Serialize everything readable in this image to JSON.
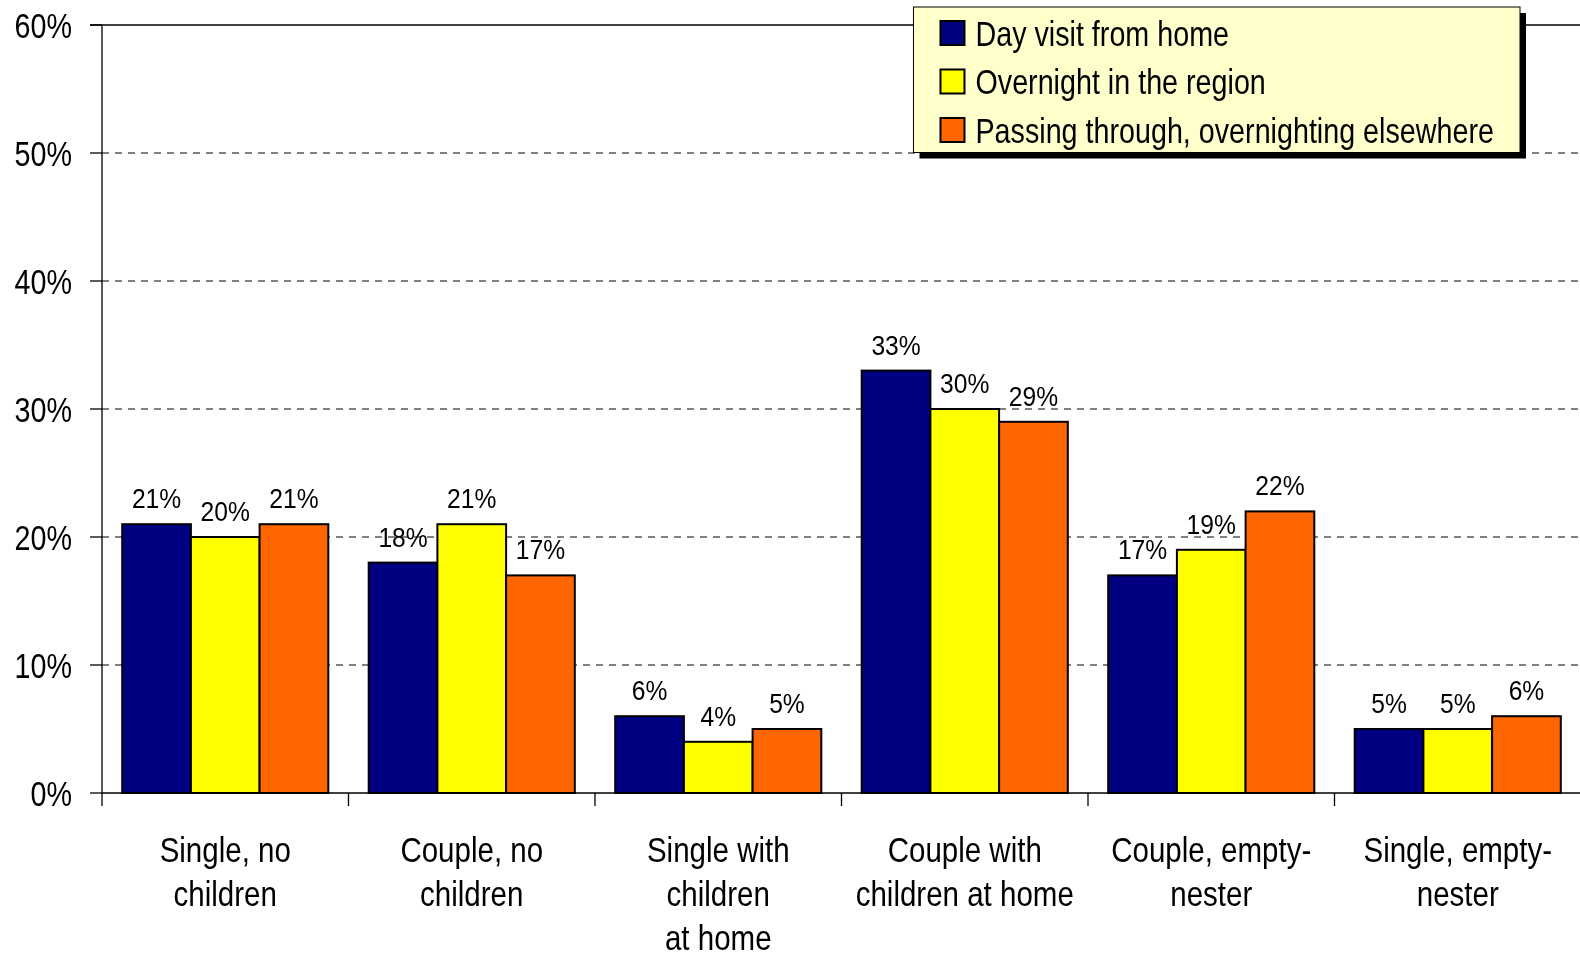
{
  "chart_data": {
    "type": "bar",
    "categories": [
      "Single, no\nchildren",
      "Couple, no\nchildren",
      "Single with\nchildren\nat home",
      "Couple with\nchildren at home",
      "Couple, empty-\nnester",
      "Single, empty-\nnester"
    ],
    "series": [
      {
        "name": "Day visit from home",
        "color": "#000080",
        "values": [
          21,
          18,
          6,
          33,
          17,
          5
        ],
        "value_labels": [
          "21%",
          "18%",
          "6%",
          "33%",
          "17%",
          "5%"
        ]
      },
      {
        "name": "Overnight in the region",
        "color": "#ffff00",
        "values": [
          20,
          21,
          4,
          30,
          19,
          5
        ],
        "value_labels": [
          "20%",
          "21%",
          "4%",
          "30%",
          "19%",
          "5%"
        ]
      },
      {
        "name": "Passing through, overnighting elsewhere",
        "color": "#ff6600",
        "values": [
          21,
          17,
          5,
          29,
          22,
          6
        ],
        "value_labels": [
          "21%",
          "17%",
          "5%",
          "29%",
          "22%",
          "6%"
        ]
      }
    ],
    "ylim": [
      0,
      60
    ],
    "yticks": [
      {
        "value": 0,
        "label": "0%"
      },
      {
        "value": 10,
        "label": "10%"
      },
      {
        "value": 20,
        "label": "20%"
      },
      {
        "value": 30,
        "label": "30%"
      },
      {
        "value": 40,
        "label": "40%"
      },
      {
        "value": 50,
        "label": "50%"
      },
      {
        "value": 60,
        "label": "60%"
      }
    ],
    "grid": "y",
    "legend": "top right"
  }
}
